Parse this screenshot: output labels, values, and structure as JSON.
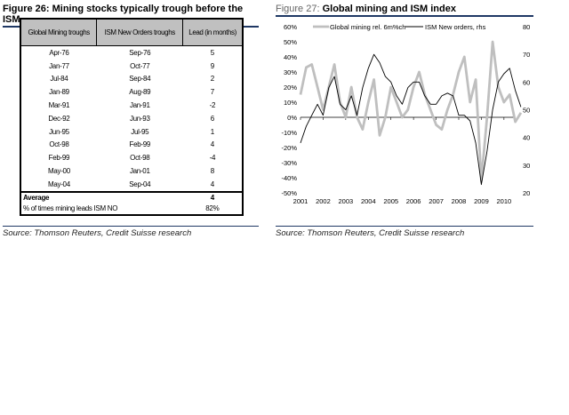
{
  "fig26": {
    "title": "Figure 26: Mining stocks typically trough before the ISM",
    "headers": [
      "Global Mining troughs",
      "ISM New Orders troughs",
      "Lead (in months)"
    ],
    "rows": [
      [
        "Apr-76",
        "Sep-76",
        "5"
      ],
      [
        "Jan-77",
        "Oct-77",
        "9"
      ],
      [
        "Jul-84",
        "Sep-84",
        "2"
      ],
      [
        "Jan-89",
        "Aug-89",
        "7"
      ],
      [
        "Mar-91",
        "Jan-91",
        "-2"
      ],
      [
        "Dec-92",
        "Jun-93",
        "6"
      ],
      [
        "Jun-95",
        "Jul-95",
        "1"
      ],
      [
        "Oct-98",
        "Feb-99",
        "4"
      ],
      [
        "Feb-99",
        "Oct-98",
        "-4"
      ],
      [
        "May-00",
        "Jan-01",
        "8"
      ],
      [
        "May-04",
        "Sep-04",
        "4"
      ]
    ],
    "average_label": "Average",
    "average_value": "4",
    "pct_label": "% of times mining leads ISM NO",
    "pct_value": "82%",
    "source": "Source: Thomson Reuters, Credit Suisse research"
  },
  "fig27": {
    "title_num": "Figure 27: ",
    "title_text": "Global mining and ISM index",
    "source": "Source: Thomson Reuters, Credit Suisse research"
  },
  "chart_data": {
    "type": "line",
    "title": "Global mining and ISM index",
    "x_ticks": [
      "2001",
      "2002",
      "2003",
      "2004",
      "2005",
      "2006",
      "2007",
      "2008",
      "2009",
      "2010"
    ],
    "y_left_ticks": [
      "60%",
      "50%",
      "40%",
      "30%",
      "20%",
      "10%",
      "0%",
      "-10%",
      "-20%",
      "-30%",
      "-40%",
      "-50%"
    ],
    "y_left_range": [
      -50,
      60
    ],
    "y_right_range": [
      20,
      80
    ],
    "y_right_ticks": [
      "80",
      "70",
      "60",
      "50",
      "40",
      "30",
      "20"
    ],
    "legend": "top",
    "series": [
      {
        "name": "Global mining rel. 6m%ch",
        "axis": "left",
        "color": "#bfbfbf",
        "x": [
          2001,
          2001.25,
          2001.5,
          2001.75,
          2002,
          2002.25,
          2002.5,
          2002.75,
          2003,
          2003.25,
          2003.5,
          2003.75,
          2004,
          2004.25,
          2004.5,
          2004.75,
          2005,
          2005.25,
          2005.5,
          2005.75,
          2006,
          2006.25,
          2006.5,
          2006.75,
          2007,
          2007.25,
          2007.5,
          2007.75,
          2008,
          2008.25,
          2008.5,
          2008.75,
          2009,
          2009.25,
          2009.5,
          2009.75,
          2010,
          2010.25,
          2010.5,
          2010.75
        ],
        "values": [
          15,
          33,
          35,
          20,
          5,
          20,
          35,
          10,
          0,
          20,
          0,
          -8,
          10,
          25,
          -12,
          0,
          20,
          10,
          0,
          5,
          20,
          30,
          15,
          5,
          -5,
          -8,
          5,
          15,
          30,
          40,
          10,
          25,
          -42,
          0,
          50,
          20,
          10,
          15,
          -3,
          3
        ]
      },
      {
        "name": "ISM New orders, rhs",
        "axis": "right",
        "color": "#000000",
        "x": [
          2001,
          2001.25,
          2001.5,
          2001.75,
          2002,
          2002.25,
          2002.5,
          2002.75,
          2003,
          2003.25,
          2003.5,
          2003.75,
          2004,
          2004.25,
          2004.5,
          2004.75,
          2005,
          2005.25,
          2005.5,
          2005.75,
          2006,
          2006.25,
          2006.5,
          2006.75,
          2007,
          2007.25,
          2007.5,
          2007.75,
          2008,
          2008.25,
          2008.5,
          2008.75,
          2009,
          2009.25,
          2009.5,
          2009.75,
          2010,
          2010.25,
          2010.5,
          2010.75
        ],
        "values": [
          38,
          44,
          48,
          52,
          48,
          58,
          62,
          52,
          50,
          55,
          48,
          58,
          65,
          70,
          67,
          62,
          60,
          55,
          52,
          58,
          60,
          60,
          55,
          52,
          52,
          55,
          56,
          55,
          48,
          48,
          46,
          38,
          23,
          35,
          50,
          60,
          63,
          65,
          57,
          51
        ]
      }
    ]
  }
}
